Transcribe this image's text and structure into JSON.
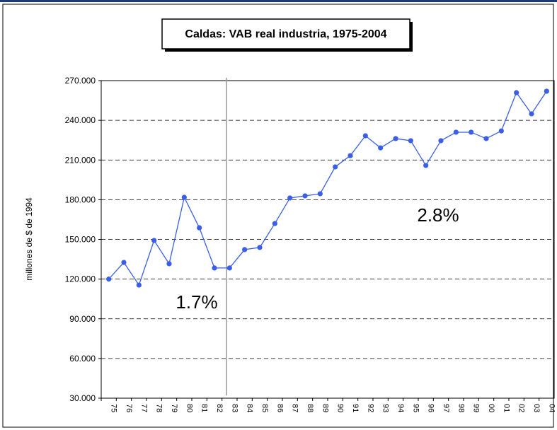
{
  "chart_data": {
    "type": "line",
    "title": "Caldas: VAB real industria, 1975-2004",
    "y_label": "millones de $ de 1994",
    "categories": [
      "75",
      "76",
      "77",
      "78",
      "79",
      "80",
      "81",
      "82",
      "83",
      "84",
      "85",
      "86",
      "87",
      "88",
      "89",
      "90",
      "91",
      "92",
      "93",
      "94",
      "95",
      "96",
      "97",
      "98",
      "99",
      "00",
      "01",
      "02",
      "03",
      "04"
    ],
    "series": [
      {
        "color": "#3a5fe6",
        "values": [
          120000,
          132600,
          115500,
          149200,
          131600,
          181800,
          158800,
          128400,
          128400,
          142300,
          143900,
          162000,
          181300,
          182900,
          184500,
          204800,
          213300,
          228300,
          219200,
          226200,
          224600,
          205900,
          224600,
          231000,
          231000,
          226200,
          232000,
          260900,
          244900,
          262000
        ]
      }
    ],
    "ylim": [
      30000,
      270000
    ],
    "yticks": [
      {
        "value": 30000,
        "label": "30.000"
      },
      {
        "value": 60000,
        "label": "60.000"
      },
      {
        "value": 90000,
        "label": "90.000"
      },
      {
        "value": 120000,
        "label": "120.000"
      },
      {
        "value": 150000,
        "label": "150.000"
      },
      {
        "value": 180000,
        "label": "180.000"
      },
      {
        "value": 210000,
        "label": "210.000"
      },
      {
        "value": 240000,
        "label": "240.000"
      },
      {
        "value": 270000,
        "label": "270.000"
      }
    ],
    "grid": true,
    "annotations": [
      "1.7%",
      "2.8%"
    ]
  }
}
